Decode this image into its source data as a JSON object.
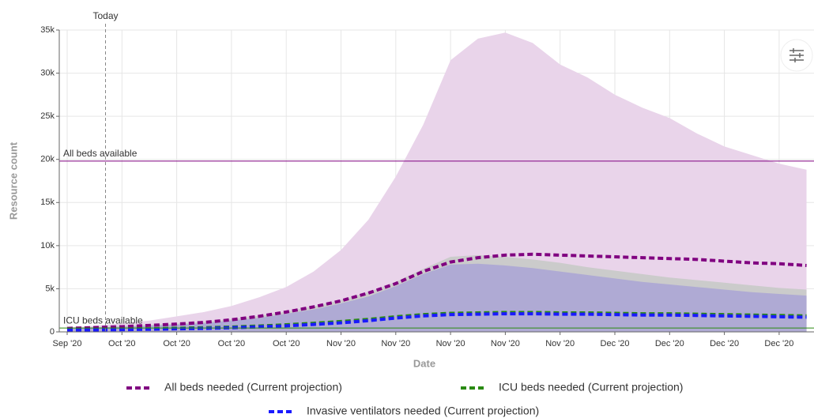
{
  "chart_data": {
    "type": "line",
    "x_label": "Date",
    "y_label": "Resource count",
    "categories": [
      "Sep '20",
      null,
      "Oct '20",
      null,
      "Oct '20",
      null,
      "Oct '20",
      null,
      "Oct '20",
      null,
      "Nov '20",
      null,
      "Nov '20",
      null,
      "Nov '20",
      null,
      "Nov '20",
      null,
      "Nov '20",
      null,
      "Dec '20",
      null,
      "Dec '20",
      null,
      "Dec '20",
      null,
      "Dec '20",
      null
    ],
    "ylim": [
      0,
      35000
    ],
    "yticks": [
      0,
      {
        "value": 5000,
        "label": "5k"
      },
      {
        "value": 10000,
        "label": "10k"
      },
      {
        "value": 15000,
        "label": "15k"
      },
      {
        "value": 20000,
        "label": "20k"
      },
      {
        "value": 25000,
        "label": "25k"
      },
      {
        "value": 30000,
        "label": "30k"
      },
      {
        "value": 35000,
        "label": "35k"
      }
    ],
    "grid": true,
    "bands": [
      {
        "color": "#e9d4ea",
        "values": [
          500,
          700,
          1000,
          1300,
          1800,
          2300,
          3000,
          4000,
          5200,
          7000,
          9500,
          13000,
          18000,
          24000,
          31500,
          34000,
          34700,
          33500,
          31000,
          29500,
          27500,
          26000,
          24800,
          23000,
          21500,
          20500,
          19500,
          18800
        ]
      },
      {
        "color": "#cbcbcb",
        "values": [
          450,
          550,
          650,
          800,
          950,
          1150,
          1450,
          1850,
          2350,
          2950,
          3700,
          4600,
          5800,
          7300,
          8700,
          8900,
          8700,
          8400,
          8000,
          7500,
          7100,
          6700,
          6300,
          6000,
          5700,
          5400,
          5100,
          4900
        ]
      },
      {
        "color": "#aaa5d6",
        "values": [
          400,
          500,
          600,
          700,
          850,
          1000,
          1300,
          1600,
          2100,
          2600,
          3300,
          4100,
          5300,
          6700,
          7800,
          7900,
          7700,
          7400,
          7000,
          6600,
          6200,
          5800,
          5500,
          5200,
          4900,
          4600,
          4400,
          4200
        ]
      }
    ],
    "series": [
      {
        "name": "All beds needed (Current projection)",
        "color": "#800080",
        "values": [
          400,
          500,
          600,
          750,
          900,
          1100,
          1400,
          1800,
          2300,
          2900,
          3600,
          4500,
          5600,
          7000,
          8100,
          8600,
          8900,
          9000,
          8900,
          8800,
          8700,
          8600,
          8500,
          8400,
          8200,
          8000,
          7900,
          7700
        ]
      },
      {
        "name": "ICU beds needed (Current projection)",
        "color": "#2a8a12",
        "values": [
          250,
          280,
          320,
          360,
          420,
          480,
          560,
          680,
          820,
          1000,
          1200,
          1450,
          1750,
          2000,
          2150,
          2200,
          2250,
          2250,
          2200,
          2200,
          2150,
          2100,
          2100,
          2050,
          2000,
          1950,
          1900,
          1850
        ]
      },
      {
        "name": "Invasive ventilators needed (Current projection)",
        "color": "#1a1aff",
        "values": [
          200,
          230,
          260,
          300,
          350,
          400,
          480,
          580,
          700,
          860,
          1050,
          1300,
          1600,
          1850,
          2000,
          2050,
          2100,
          2100,
          2050,
          2050,
          2000,
          1950,
          1950,
          1900,
          1850,
          1800,
          1750,
          1700
        ]
      }
    ],
    "annotations": [
      {
        "text": "Today",
        "x": 1.4
      },
      {
        "text": "All beds available",
        "y": 19800,
        "color": "#800080"
      },
      {
        "text": "ICU beds available",
        "y": 450,
        "color": "#2a8a12"
      }
    ]
  }
}
